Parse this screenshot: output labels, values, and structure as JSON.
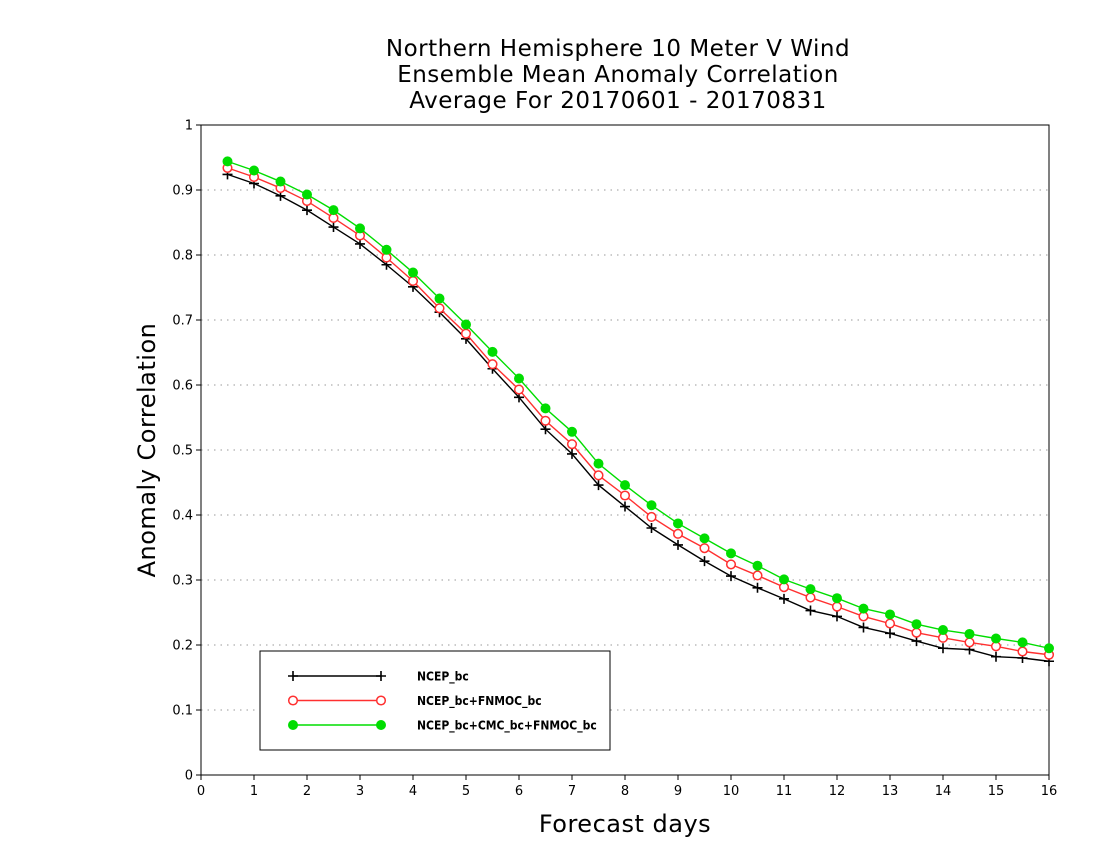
{
  "chart_data": {
    "type": "line",
    "title_lines": [
      "Northern Hemisphere 10 Meter V Wind",
      "Ensemble Mean Anomaly Correlation",
      "Average For 20170601 - 20170831"
    ],
    "xlabel": "Forecast days",
    "ylabel": "Anomaly Correlation",
    "xlim": [
      0,
      16
    ],
    "ylim": [
      0,
      1
    ],
    "xticks": [
      "0",
      "1",
      "2",
      "3",
      "4",
      "5",
      "6",
      "7",
      "8",
      "9",
      "10",
      "11",
      "12",
      "13",
      "14",
      "15",
      "16"
    ],
    "yticks": [
      "0",
      "0.1",
      "0.2",
      "0.3",
      "0.4",
      "0.5",
      "0.6",
      "0.7",
      "0.8",
      "0.9",
      "1"
    ],
    "grid": "horizontal dotted",
    "legend_position": "bottom-left",
    "x": [
      0.5,
      1,
      1.5,
      2,
      2.5,
      3,
      3.5,
      4,
      4.5,
      5,
      5.5,
      6,
      6.5,
      7,
      7.5,
      8,
      8.5,
      9,
      9.5,
      10,
      10.5,
      11,
      11.5,
      12,
      12.5,
      13,
      13.5,
      14,
      14.5,
      15,
      15.5,
      16
    ],
    "series": [
      {
        "name": "NCEP_bc",
        "color": "#000000",
        "marker": "plus",
        "values": [
          0.924,
          0.91,
          0.891,
          0.869,
          0.843,
          0.817,
          0.785,
          0.751,
          0.712,
          0.671,
          0.625,
          0.581,
          0.532,
          0.494,
          0.446,
          0.413,
          0.38,
          0.354,
          0.329,
          0.306,
          0.288,
          0.271,
          0.253,
          0.244,
          0.227,
          0.218,
          0.206,
          0.195,
          0.193,
          0.182,
          0.18,
          0.175
        ]
      },
      {
        "name": "NCEP_bc+FNMOC_bc",
        "color": "#ff3030",
        "marker": "open-circle",
        "values": [
          0.934,
          0.92,
          0.903,
          0.883,
          0.857,
          0.83,
          0.796,
          0.76,
          0.718,
          0.679,
          0.632,
          0.593,
          0.545,
          0.509,
          0.461,
          0.43,
          0.397,
          0.371,
          0.349,
          0.324,
          0.307,
          0.289,
          0.273,
          0.259,
          0.244,
          0.233,
          0.219,
          0.211,
          0.204,
          0.198,
          0.19,
          0.185
        ]
      },
      {
        "name": "NCEP_bc+CMC_bc+FNMOC_bc",
        "color": "#00dd00",
        "marker": "filled-circle",
        "values": [
          0.944,
          0.93,
          0.913,
          0.893,
          0.869,
          0.841,
          0.808,
          0.773,
          0.733,
          0.693,
          0.651,
          0.61,
          0.564,
          0.528,
          0.479,
          0.446,
          0.415,
          0.387,
          0.364,
          0.341,
          0.322,
          0.301,
          0.286,
          0.272,
          0.256,
          0.247,
          0.232,
          0.223,
          0.217,
          0.21,
          0.204,
          0.195
        ]
      }
    ]
  }
}
